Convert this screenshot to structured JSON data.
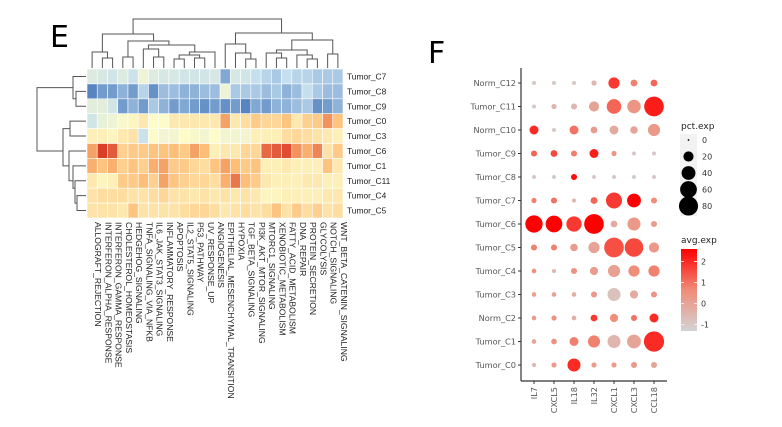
{
  "panels": {
    "left_letter": "E",
    "right_letter": "F"
  },
  "chart_data": [
    {
      "type": "heatmap",
      "panel": "E",
      "title": "",
      "xlabel": "",
      "ylabel": "",
      "rows": [
        "Tumor_C7",
        "Tumor_C8",
        "Tumor_C9",
        "Tumor_C0",
        "Tumor_C3",
        "Tumor_C6",
        "Tumor_C1",
        "Tumor_C11",
        "Tumor_C4",
        "Tumor_C5"
      ],
      "columns": [
        "ALLOGRAFT_REJECTION",
        "INTERFERON_ALPHA_RESPONSE",
        "INTERFERON_GAMMA_RESPONSE",
        "CHOLESTEROL_HOMEOSTASIS",
        "HEDGEHOG_SIGNALING",
        "TNFA_SIGNALING_VIA_NFKB",
        "IL6_JAK_STAT3_SIGNALING",
        "INFLAMMATORY_RESPONSE",
        "APOPTOSIS",
        "IL2_STAT5_SIGNALING",
        "P53_PATHWAY",
        "UV_RESPONSE_UP",
        "ANGIOGENESIS",
        "EPITHELIAL_MESENCHYMAL_TRANSITION",
        "HYPOXIA",
        "TGF_BETA_SIGNALING",
        "PI3K_AKT_MTOR_SIGNALING",
        "MTORC1_SIGNALING",
        "XENOBIOTIC_METABOLISM",
        "FATTY_ACID_METABOLISM",
        "DNA_REPAIR",
        "PROTEIN_SECRETION",
        "GLYCOLYSIS",
        "NOTCH_SIGNALING",
        "WNT_BETA_CATENIN_SIGNALING"
      ],
      "color_scale": {
        "low": "#3b6fb6",
        "mid": "#fdfbc8",
        "high": "#d7301f",
        "range": [
          -2,
          2
        ]
      },
      "values": [
        [
          -0.6,
          -0.7,
          -0.8,
          -0.6,
          -0.9,
          -0.3,
          -0.6,
          -0.7,
          -0.7,
          -0.8,
          -0.8,
          -0.8,
          -0.7,
          -1.5,
          -0.7,
          -0.8,
          -1.0,
          -1.1,
          -1.2,
          -1.0,
          -1.1,
          -1.1,
          -1.2,
          -1.2,
          -1.2
        ],
        [
          -1.8,
          -1.6,
          -1.6,
          -1.4,
          -1.6,
          -1.1,
          -1.7,
          -1.3,
          -1.3,
          -1.4,
          -1.4,
          -1.3,
          -1.3,
          -0.3,
          -1.2,
          -1.2,
          -1.2,
          -1.3,
          -1.2,
          -1.4,
          -1.3,
          -1.0,
          -1.2,
          -1.3,
          -1.3
        ],
        [
          -0.5,
          -0.5,
          -0.8,
          -1.6,
          -1.4,
          -1.6,
          -1.2,
          -1.4,
          -1.6,
          -1.5,
          -1.6,
          -1.7,
          -1.6,
          -1.7,
          -1.6,
          -1.8,
          -1.5,
          -1.6,
          -1.4,
          -1.4,
          -1.3,
          -1.2,
          -1.7,
          -1.6,
          -1.4
        ],
        [
          -0.8,
          -0.4,
          -0.3,
          -0.1,
          0.1,
          0.3,
          0.0,
          0.0,
          0.3,
          0.3,
          0.3,
          0.3,
          0.3,
          1.2,
          0.3,
          0.5,
          0.8,
          0.6,
          0.6,
          0.9,
          0.3,
          0.7,
          0.8,
          1.3,
          0.9
        ],
        [
          0.2,
          0.2,
          0.1,
          0.3,
          0.4,
          -0.9,
          0.0,
          -0.2,
          -0.2,
          0.0,
          -0.1,
          -0.2,
          0.0,
          -0.2,
          -0.2,
          -0.2,
          0.2,
          0.2,
          0.2,
          0.5,
          0.6,
          0.5,
          0.4,
          0.3,
          0.2
        ],
        [
          1.2,
          1.9,
          1.7,
          0.7,
          0.8,
          0.8,
          0.9,
          0.9,
          1.0,
          0.8,
          1.2,
          1.0,
          0.2,
          0.3,
          0.3,
          0.6,
          0.6,
          1.6,
          1.7,
          1.8,
          1.3,
          1.1,
          1.4,
          0.4,
          0.8
        ],
        [
          1.1,
          0.9,
          1.1,
          0.7,
          0.9,
          0.7,
          1.1,
          1.2,
          0.8,
          0.8,
          0.6,
          0.5,
          0.9,
          1.2,
          1.0,
          0.8,
          0.9,
          0.2,
          0.2,
          0.3,
          0.2,
          0.2,
          0.2,
          0.9,
          0.3
        ],
        [
          0.3,
          0.1,
          0.2,
          0.8,
          0.8,
          1.0,
          0.7,
          1.2,
          0.9,
          0.7,
          0.6,
          0.6,
          0.5,
          1.1,
          1.5,
          1.0,
          0.8,
          0.3,
          0.2,
          0.2,
          0.2,
          0.3,
          0.3,
          0.2,
          0.2
        ],
        [
          0.4,
          0.5,
          0.5,
          0.5,
          0.4,
          0.4,
          0.5,
          0.6,
          0.4,
          0.4,
          0.3,
          0.4,
          0.3,
          0.4,
          0.3,
          0.4,
          0.3,
          0.1,
          0.1,
          0.2,
          0.2,
          0.2,
          0.2,
          0.3,
          0.3
        ],
        [
          0.4,
          0.4,
          0.4,
          0.3,
          0.9,
          0.4,
          0.4,
          0.4,
          0.4,
          0.5,
          0.6,
          0.6,
          0.5,
          0.3,
          0.4,
          0.5,
          0.4,
          0.5,
          0.9,
          0.4,
          0.8,
          0.5,
          0.7,
          0.4,
          0.5
        ]
      ]
    },
    {
      "type": "scatter",
      "subtype": "dotplot",
      "panel": "F",
      "title": "",
      "xlabel": "",
      "ylabel": "",
      "x_categories": [
        "IL7",
        "CXCL5",
        "IL18",
        "IL32",
        "CXCL1",
        "CXCL3",
        "CCL18"
      ],
      "y_categories": [
        "Norm_C12",
        "Tumor_C11",
        "Norm_C10",
        "Tumor_C9",
        "Tumor_C8",
        "Tumor_C7",
        "Tumor_C6",
        "Tumor_C5",
        "Tumor_C4",
        "Tumor_C3",
        "Norm_C2",
        "Tumor_C1",
        "Tumor_C0"
      ],
      "size_legend": {
        "title": "pct.exp",
        "breaks": [
          0,
          20,
          40,
          60,
          80
        ]
      },
      "color_legend": {
        "title": "avg.exp",
        "breaks": [
          2,
          1,
          0,
          -1
        ],
        "range": [
          -1.3,
          2.6
        ],
        "low": "#d3d3d3",
        "high": "#ff0000"
      },
      "pct_exp": [
        [
          2,
          2,
          2,
          4,
          25,
          8,
          8
        ],
        [
          2,
          4,
          6,
          20,
          45,
          38,
          85
        ],
        [
          15,
          2,
          15,
          8,
          15,
          10,
          30
        ],
        [
          6,
          8,
          6,
          15,
          4,
          2,
          2
        ],
        [
          2,
          2,
          6,
          2,
          2,
          2,
          2
        ],
        [
          4,
          6,
          2,
          8,
          55,
          40,
          6
        ],
        [
          65,
          60,
          50,
          85,
          8,
          35,
          6
        ],
        [
          6,
          6,
          10,
          25,
          85,
          75,
          20
        ],
        [
          3,
          2,
          6,
          12,
          30,
          25,
          25
        ],
        [
          3,
          3,
          3,
          6,
          35,
          12,
          6
        ],
        [
          3,
          4,
          3,
          8,
          12,
          6,
          15
        ],
        [
          3,
          5,
          15,
          30,
          35,
          40,
          90
        ],
        [
          2,
          4,
          35,
          4,
          4,
          6,
          6
        ]
      ],
      "avg_exp": [
        [
          -1,
          -1,
          -1,
          -0.5,
          1.8,
          0.8,
          1.2
        ],
        [
          -1,
          -0.5,
          -0.5,
          0.0,
          1.2,
          0.4,
          2.2
        ],
        [
          2.0,
          -1,
          1.0,
          0.2,
          -0.2,
          0.0,
          0.3
        ],
        [
          1.2,
          1.6,
          0.8,
          2.2,
          0.4,
          -1,
          -1
        ],
        [
          -1,
          -1,
          2.4,
          -1,
          -1,
          -1,
          -1
        ],
        [
          0.8,
          1.0,
          -0.5,
          1.2,
          1.8,
          2.6,
          0.6
        ],
        [
          2.6,
          2.6,
          1.8,
          2.6,
          -0.2,
          0.3,
          0.2
        ],
        [
          0.8,
          0.8,
          0.2,
          0.0,
          1.5,
          1.6,
          0.3
        ],
        [
          0.5,
          -0.5,
          0.5,
          0.2,
          0.1,
          0.6,
          0.8
        ],
        [
          0.1,
          0.0,
          -0.3,
          0.3,
          -0.8,
          -0.2,
          0.4
        ],
        [
          0.3,
          0.5,
          -0.3,
          1.8,
          0.6,
          1.0,
          2.0
        ],
        [
          0.0,
          0.5,
          0.8,
          0.8,
          -0.5,
          0.0,
          2.0
        ],
        [
          -0.5,
          0.2,
          2.0,
          0.2,
          0.2,
          0.3,
          0.0
        ]
      ]
    }
  ]
}
